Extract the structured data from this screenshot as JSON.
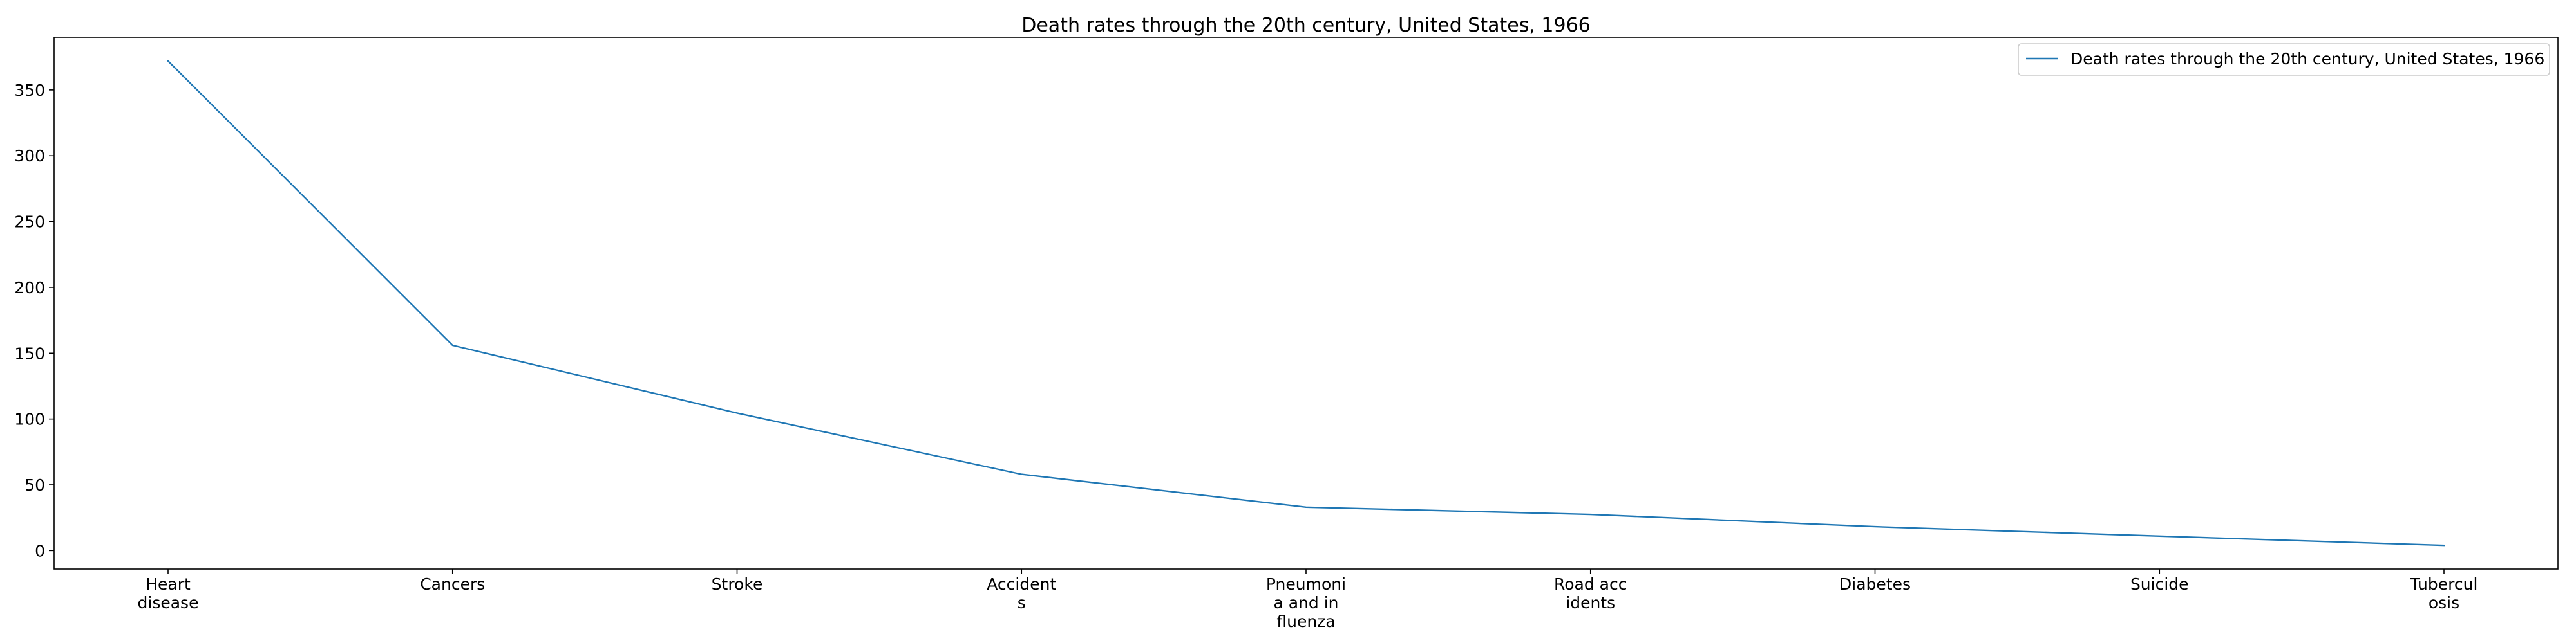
{
  "chart_data": {
    "type": "line",
    "title": "Death rates through the 20th century, United States, 1966",
    "xlabel": "",
    "ylabel": "",
    "categories": [
      [
        "Heart",
        "disease"
      ],
      [
        "Cancers"
      ],
      [
        "Stroke"
      ],
      [
        "Accident",
        "s"
      ],
      [
        "Pneumoni",
        "a and in",
        "fluenza"
      ],
      [
        "Road acc",
        "idents"
      ],
      [
        "Diabetes"
      ],
      [
        "Suicide"
      ],
      [
        "Tubercul",
        "osis"
      ]
    ],
    "series": [
      {
        "name": "Death rates through the 20th century, United States, 1966",
        "values": [
          372,
          156,
          104.5,
          58,
          33,
          27.5,
          18.2,
          11,
          4
        ],
        "color": "#1f77b4"
      }
    ],
    "ylim": [
      -14,
      390
    ],
    "yticks": [
      0,
      50,
      100,
      150,
      200,
      250,
      300,
      350
    ],
    "grid": false,
    "legend_position": "top-right"
  }
}
